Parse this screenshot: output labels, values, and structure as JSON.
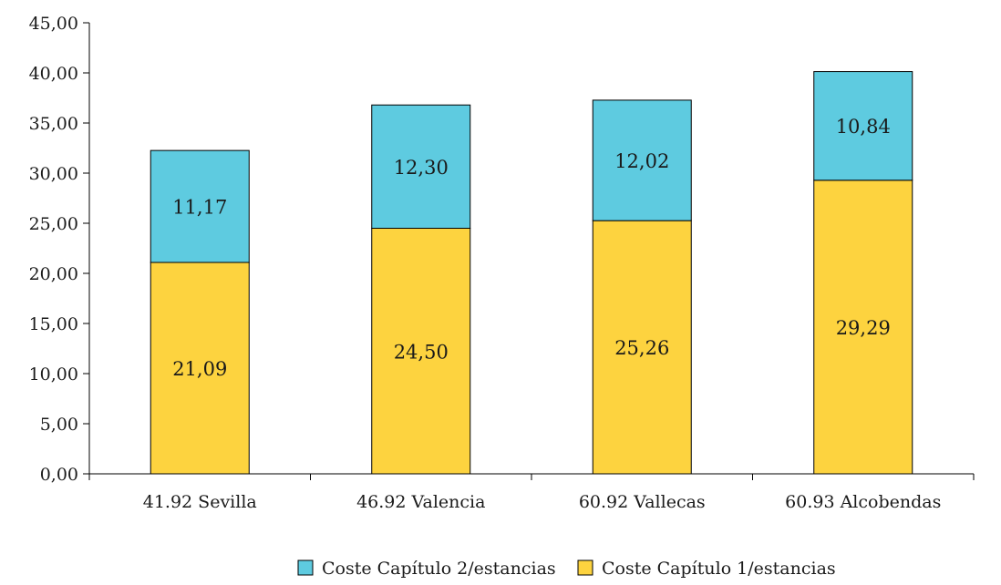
{
  "chart_data": {
    "type": "bar",
    "stacked": true,
    "categories": [
      "41.92 Sevilla",
      "46.92 Valencia",
      "60.92 Vallecas",
      "60.93 Alcobendas"
    ],
    "series": [
      {
        "name": "Coste Capítulo 1/estancias",
        "color": "#FDD33F",
        "values": [
          21.09,
          24.5,
          25.26,
          29.29
        ],
        "labels": [
          "21,09",
          "24,50",
          "25,26",
          "29,29"
        ]
      },
      {
        "name": "Coste Capítulo 2/estancias",
        "color": "#5ECBE0",
        "values": [
          11.17,
          12.3,
          12.02,
          10.84
        ],
        "labels": [
          "11,17",
          "12,30",
          "12,02",
          "10,84"
        ]
      }
    ],
    "ylim": [
      0,
      45
    ],
    "yticks": [
      0,
      5,
      10,
      15,
      20,
      25,
      30,
      35,
      40,
      45
    ],
    "ytick_labels": [
      "0,00",
      "5,00",
      "10,00",
      "15,00",
      "20,00",
      "25,00",
      "30,00",
      "35,00",
      "40,00",
      "45,00"
    ],
    "legend": {
      "placement": "bottom-center",
      "entries": [
        "Coste Capítulo 2/estancias",
        "Coste Capítulo 1/estancias"
      ]
    },
    "grid": false
  }
}
